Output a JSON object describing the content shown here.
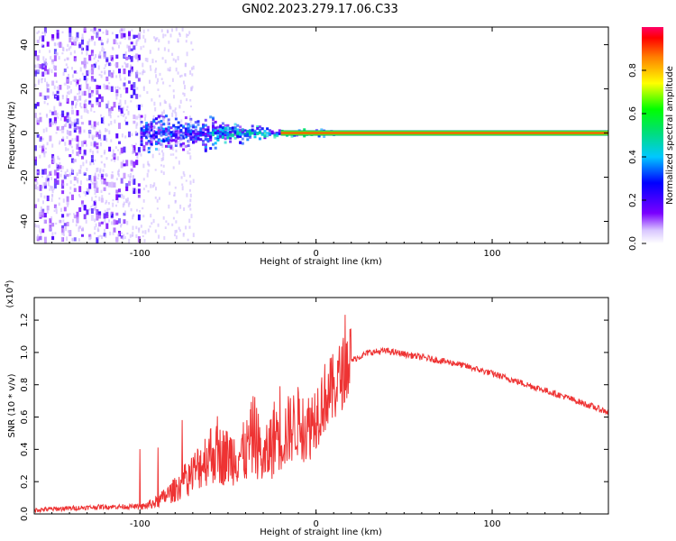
{
  "title": "GN02.2023.279.17.06.C33",
  "chart_data": [
    {
      "type": "heatmap",
      "xlabel": "Height of straight line (km)",
      "ylabel": "Frequency (Hz)",
      "xlim": [
        -160,
        166
      ],
      "ylim": [
        -50,
        48
      ],
      "xticks": [
        -100,
        0,
        100
      ],
      "yticks": [
        -40,
        -20,
        0,
        20,
        40
      ],
      "description_values": {
        "carrier_line_hz": 0,
        "carrier_start_km": -20,
        "noise_region_km": [
          -160,
          -100
        ],
        "transition_region_km": [
          -100,
          -20
        ]
      },
      "colorbar": {
        "label": "Normalized spectral amplitude",
        "range": [
          0.0,
          1.0
        ],
        "ticks": [
          0.0,
          0.2,
          0.4,
          0.6,
          0.8
        ]
      }
    },
    {
      "type": "line",
      "xlabel": "Height of straight line (km)",
      "ylabel": "SNR (10 * v/v)",
      "y_scale_label": "(x10",
      "y_scale_exp": "4",
      "y_scale_close": ")",
      "xlim": [
        -160,
        166
      ],
      "ylim": [
        0.0,
        1.34
      ],
      "xticks": [
        -100,
        0,
        100
      ],
      "yticks": [
        0.0,
        0.2,
        0.4,
        0.6,
        0.8,
        1.0,
        1.2
      ],
      "series": [
        {
          "color": "#ee3333",
          "x": [
            -160,
            -140,
            -120,
            -100,
            -90,
            -80,
            -70,
            -60,
            -50,
            -40,
            -35,
            -30,
            -25,
            -20,
            -15,
            -10,
            -5,
            0,
            5,
            10,
            15,
            20,
            30,
            40,
            50,
            60,
            80,
            100,
            120,
            140,
            166
          ],
          "y": [
            0.01,
            0.02,
            0.03,
            0.03,
            0.06,
            0.12,
            0.2,
            0.3,
            0.28,
            0.3,
            0.4,
            0.25,
            0.35,
            0.45,
            0.5,
            0.55,
            0.5,
            0.6,
            0.7,
            0.75,
            0.85,
            0.95,
            1.0,
            1.01,
            0.99,
            0.97,
            0.93,
            0.87,
            0.8,
            0.73,
            0.63
          ]
        }
      ]
    }
  ]
}
